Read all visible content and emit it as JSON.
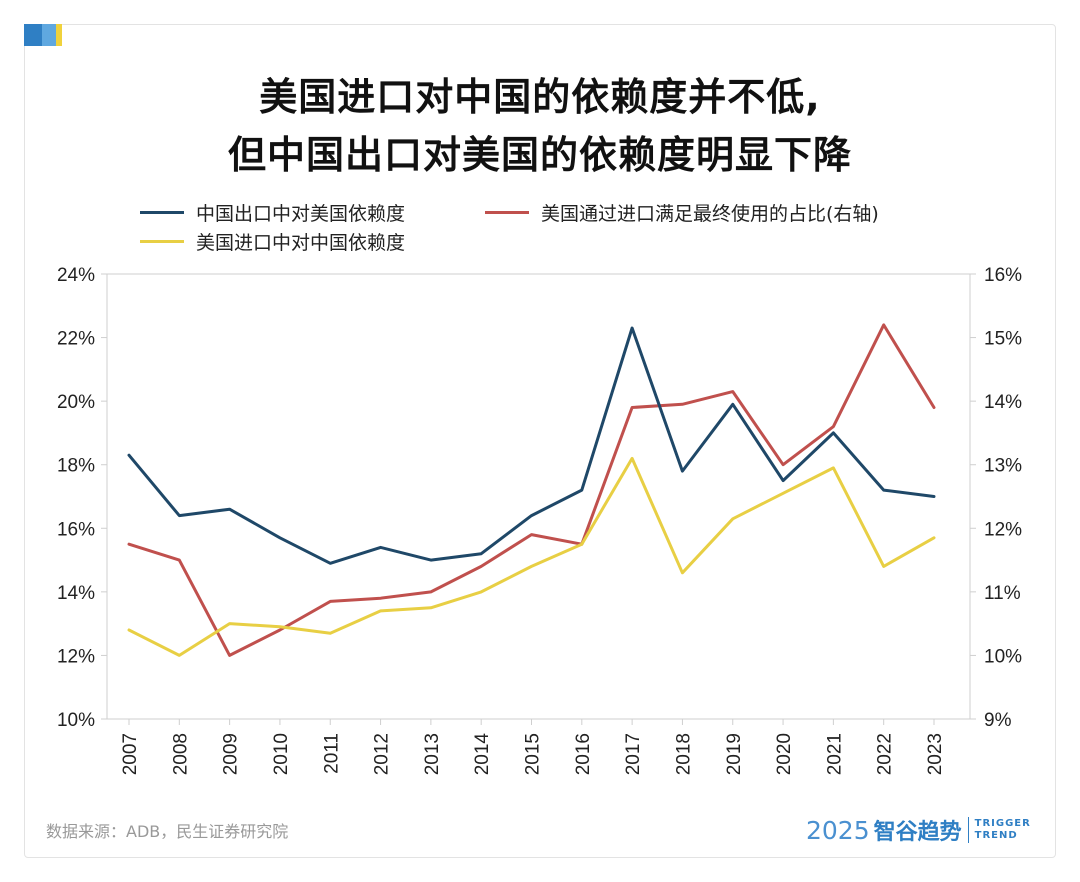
{
  "header": {
    "title_line1": "美国进口对中国的依赖度并不低,",
    "title_line2": "但中国出口对美国的依赖度明显下降"
  },
  "footer": {
    "source": "数据来源：ADB，民生证券研究院",
    "brand_year": "2025",
    "brand_name": "智谷趋势",
    "brand_en_1": "TRIGGER",
    "brand_en_2": "TREND"
  },
  "colors": {
    "navy": "#1f4868",
    "red": "#c0504d",
    "yellow": "#e8cf44",
    "axis": "#cccccc",
    "text": "#222222"
  },
  "chart_data": {
    "type": "line",
    "categories": [
      "2007",
      "2008",
      "2009",
      "2010",
      "2011",
      "2012",
      "2013",
      "2014",
      "2015",
      "2016",
      "2017",
      "2018",
      "2019",
      "2020",
      "2021",
      "2022",
      "2023"
    ],
    "left_axis": {
      "ylim": [
        10,
        24
      ],
      "ticks": [
        10,
        12,
        14,
        16,
        18,
        20,
        22,
        24
      ],
      "tick_labels": [
        "10%",
        "12%",
        "14%",
        "16%",
        "18%",
        "20%",
        "22%",
        "24%"
      ]
    },
    "right_axis": {
      "ylim": [
        9,
        16
      ],
      "ticks": [
        9,
        10,
        11,
        12,
        13,
        14,
        15,
        16
      ],
      "tick_labels": [
        "9%",
        "10%",
        "11%",
        "12%",
        "13%",
        "14%",
        "15%",
        "16%"
      ]
    },
    "legend_placement": "top",
    "series": [
      {
        "name": "中国出口中对美国依赖度",
        "axis": "left",
        "color": "#1f4868",
        "values": [
          18.3,
          16.4,
          16.6,
          15.7,
          14.9,
          15.4,
          15.0,
          15.2,
          16.4,
          17.2,
          22.3,
          17.8,
          19.9,
          17.5,
          19.0,
          17.2,
          17.0
        ]
      },
      {
        "name": "美国通过进口满足最终使用的占比(右轴)",
        "axis": "right",
        "color": "#c0504d",
        "values": [
          11.75,
          11.5,
          10.0,
          10.4,
          10.85,
          10.9,
          11.0,
          11.4,
          11.9,
          11.75,
          13.9,
          13.95,
          14.15,
          13.0,
          13.6,
          15.2,
          13.9
        ]
      },
      {
        "name": "美国进口中对中国依赖度",
        "axis": "left",
        "color": "#e8cf44",
        "values": [
          12.8,
          12.0,
          13.0,
          12.9,
          12.7,
          13.4,
          13.5,
          14.0,
          14.8,
          15.5,
          18.2,
          14.6,
          16.3,
          17.1,
          17.9,
          14.8,
          15.7
        ]
      }
    ]
  }
}
